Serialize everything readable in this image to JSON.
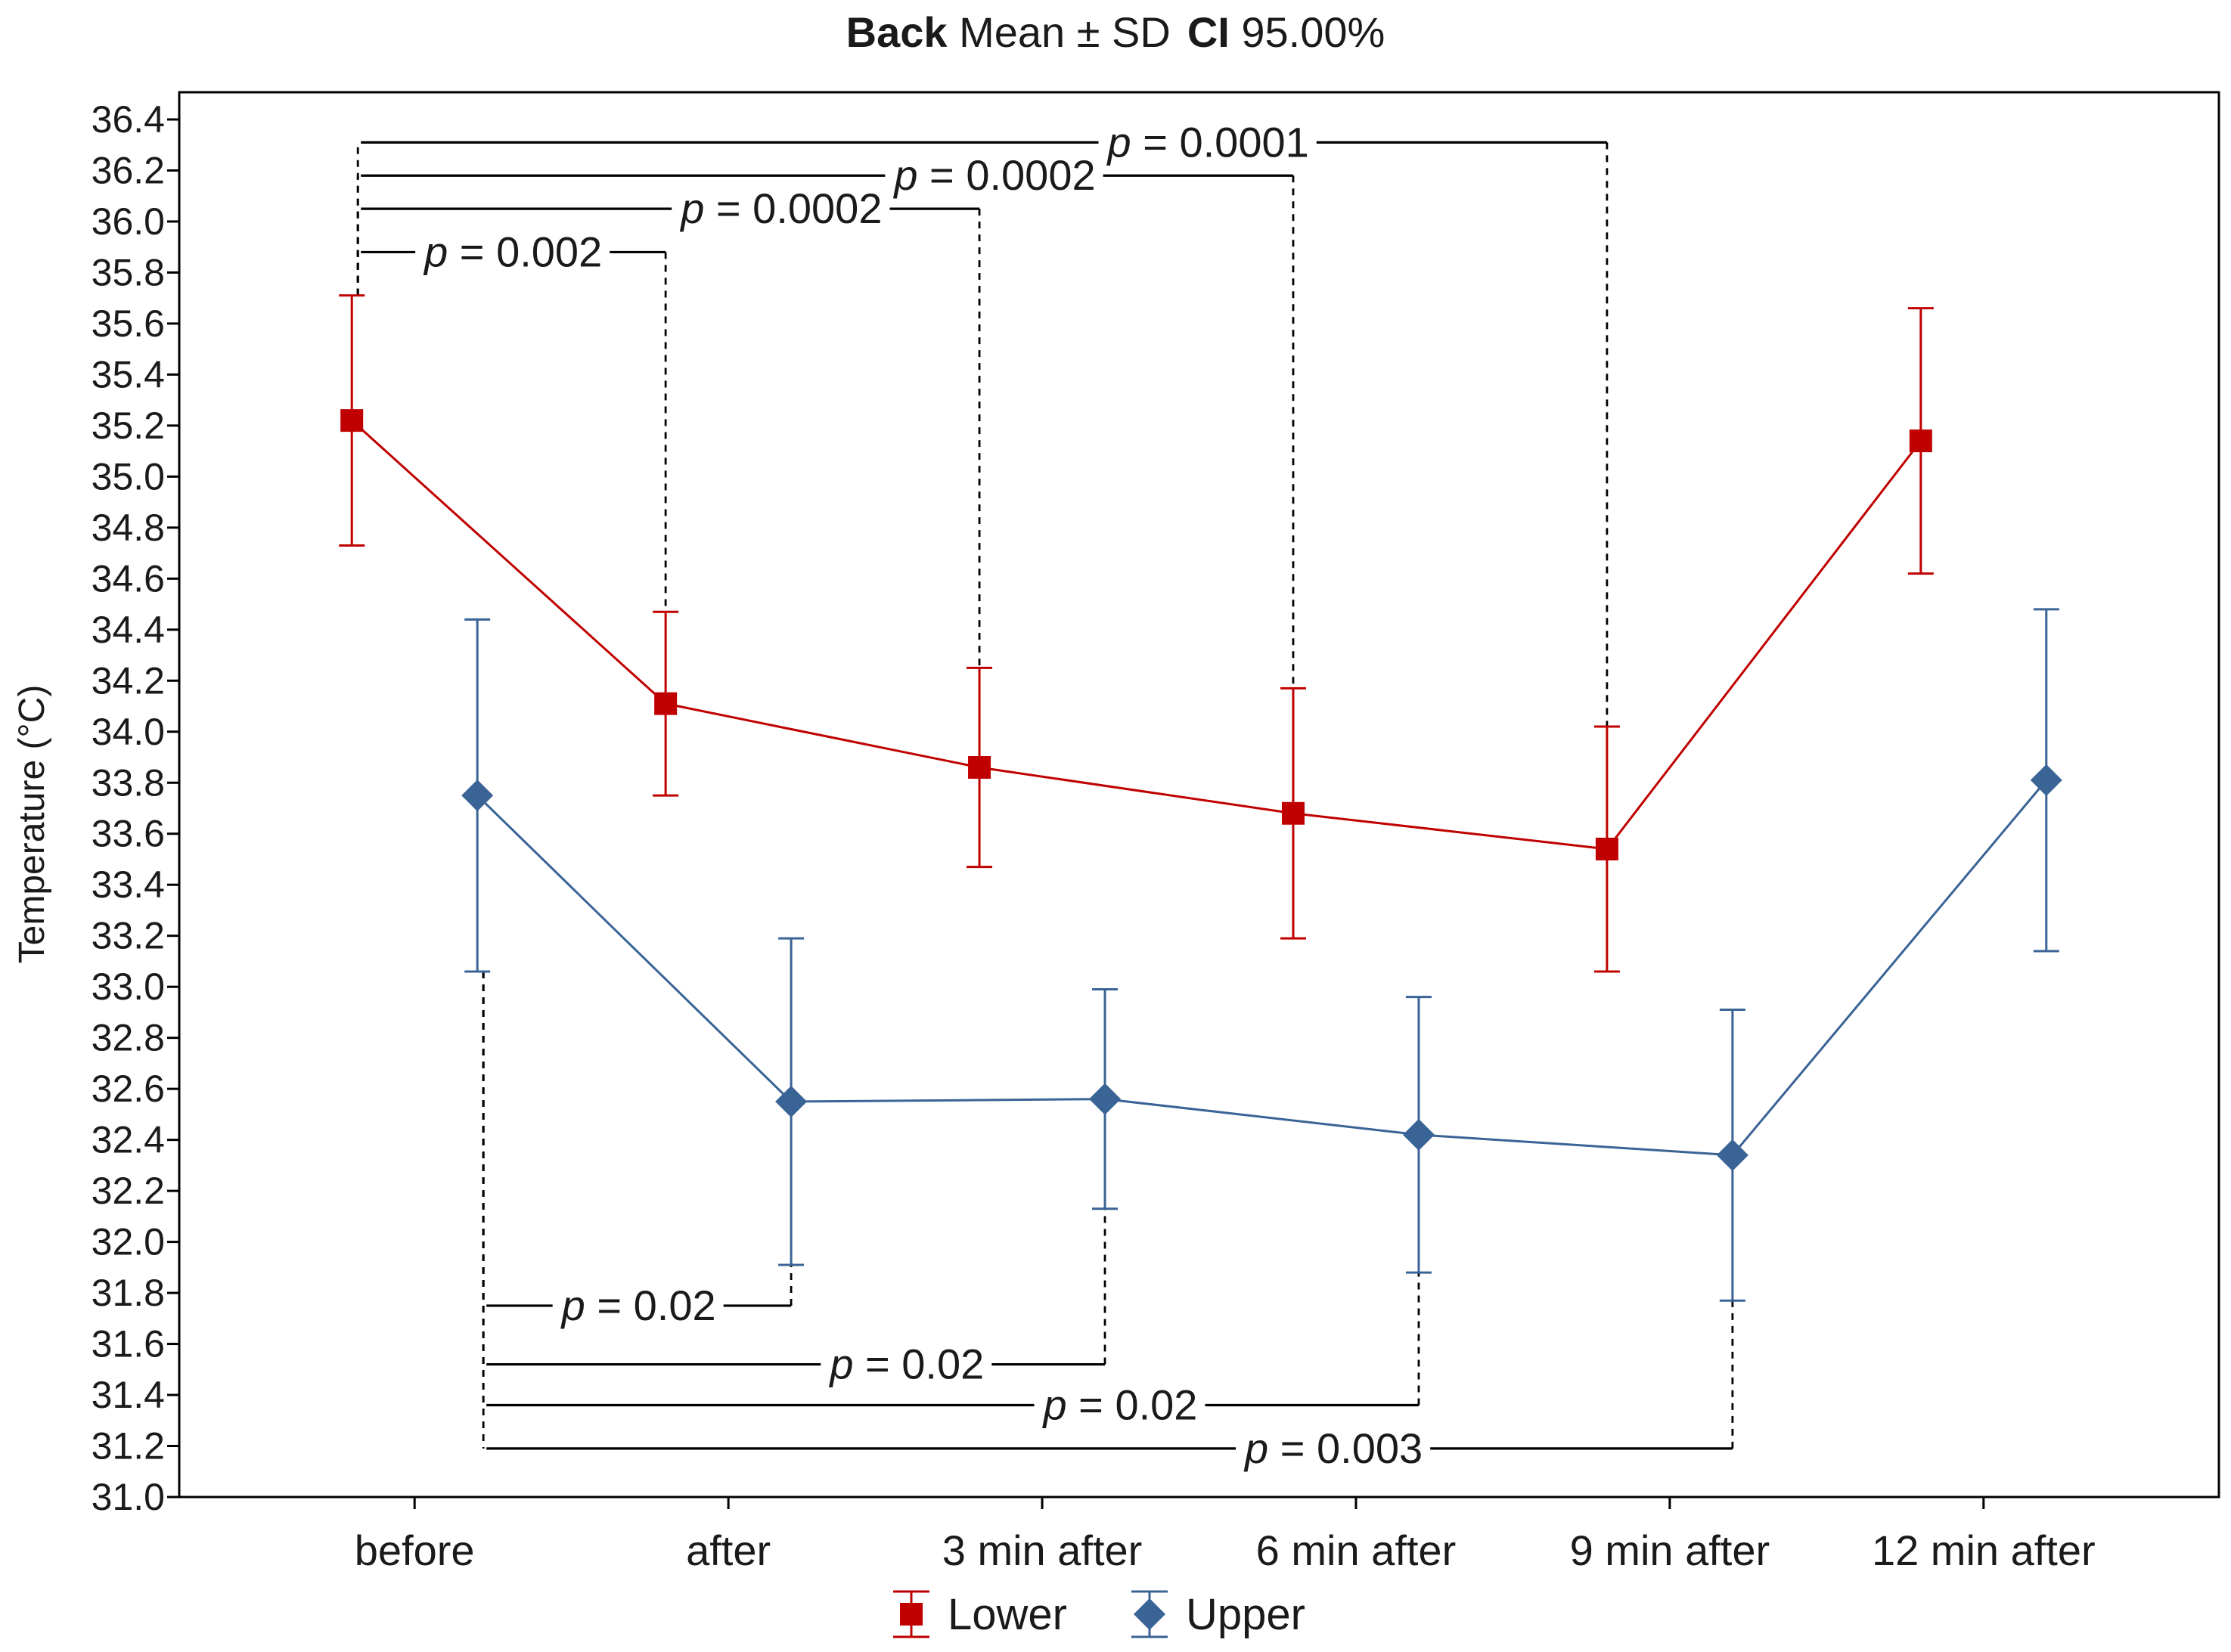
{
  "chart_data": {
    "type": "line",
    "title": {
      "bold1": "Back",
      "rest1": " Mean ± SD",
      "bold2": "CI",
      "rest2": " 95.00%"
    },
    "ylabel": "Temperature (°C)",
    "xlabel": "",
    "ylim": [
      31.0,
      36.4
    ],
    "ytick_step": 0.2,
    "yticks": [
      "31.0",
      "31.2",
      "31.4",
      "31.6",
      "31.8",
      "32.0",
      "32.2",
      "32.4",
      "32.6",
      "32.8",
      "33.0",
      "33.2",
      "33.4",
      "33.6",
      "33.8",
      "34.0",
      "34.2",
      "34.4",
      "34.6",
      "34.8",
      "35.0",
      "35.2",
      "35.4",
      "35.6",
      "35.8",
      "36.0",
      "36.2",
      "36.4"
    ],
    "categories": [
      "before",
      "after",
      "3 min after",
      "6 min after",
      "9 min after",
      "12 min after"
    ],
    "series": [
      {
        "name": "Lower",
        "color": "#c00000",
        "marker": "square",
        "offset": -0.2,
        "values": [
          35.22,
          34.11,
          33.86,
          33.68,
          33.54,
          35.14
        ],
        "sd": [
          0.49,
          0.36,
          0.39,
          0.49,
          0.48,
          0.52
        ]
      },
      {
        "name": "Upper",
        "color": "#3a6396",
        "marker": "diamond",
        "offset": 0.2,
        "values": [
          33.75,
          32.55,
          32.56,
          32.42,
          32.34,
          33.81
        ],
        "sd": [
          0.69,
          0.64,
          0.43,
          0.54,
          0.57,
          0.67
        ]
      }
    ],
    "annotations": [
      {
        "series": "Lower",
        "from": 0,
        "to": 1,
        "level": 35.88,
        "label": "p = 0.002"
      },
      {
        "series": "Lower",
        "from": 0,
        "to": 2,
        "level": 36.05,
        "label": "p = 0.0002"
      },
      {
        "series": "Lower",
        "from": 0,
        "to": 3,
        "level": 36.18,
        "label": "p = 0.0002"
      },
      {
        "series": "Lower",
        "from": 0,
        "to": 4,
        "level": 36.31,
        "label": "p = 0.0001"
      },
      {
        "series": "Upper",
        "from": 0,
        "to": 1,
        "level": 31.75,
        "label": "p = 0.02"
      },
      {
        "series": "Upper",
        "from": 0,
        "to": 2,
        "level": 31.52,
        "label": "p = 0.02"
      },
      {
        "series": "Upper",
        "from": 0,
        "to": 3,
        "level": 31.36,
        "label": "p = 0.02"
      },
      {
        "series": "Upper",
        "from": 0,
        "to": 4,
        "level": 31.19,
        "label": "p = 0.003"
      }
    ],
    "legend": {
      "position": "bottom",
      "items": [
        "Lower",
        "Upper"
      ]
    }
  }
}
